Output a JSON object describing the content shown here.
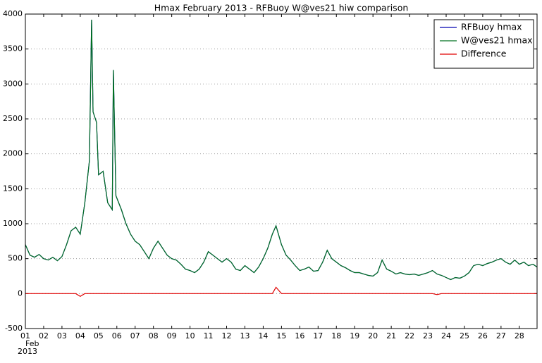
{
  "chart_data": {
    "type": "line",
    "title": "Hmax February 2013 - RFBuoy W@ves21 hiw comparison",
    "x_axis_month": "Feb",
    "x_axis_year": "2013",
    "x": [
      1,
      1.25,
      1.5,
      1.75,
      2,
      2.25,
      2.5,
      2.75,
      3,
      3.25,
      3.5,
      3.75,
      4,
      4.25,
      4.5,
      4.62,
      4.7,
      4.89,
      5,
      5.25,
      5.5,
      5.75,
      5.81,
      5.95,
      6.25,
      6.5,
      6.75,
      7,
      7.25,
      7.5,
      7.75,
      8,
      8.25,
      8.5,
      8.75,
      9,
      9.25,
      9.5,
      9.75,
      10,
      10.25,
      10.5,
      10.75,
      11,
      11.25,
      11.5,
      11.75,
      12,
      12.25,
      12.5,
      12.75,
      13,
      13.25,
      13.5,
      13.75,
      14,
      14.25,
      14.5,
      14.7,
      15,
      15.25,
      15.5,
      15.75,
      16,
      16.25,
      16.5,
      16.75,
      17,
      17.25,
      17.5,
      17.75,
      18,
      18.25,
      18.5,
      18.75,
      19,
      19.25,
      19.5,
      19.75,
      20,
      20.25,
      20.5,
      20.75,
      21,
      21.25,
      21.5,
      21.75,
      22,
      22.25,
      22.5,
      22.75,
      23,
      23.25,
      23.5,
      23.75,
      24,
      24.25,
      24.5,
      24.75,
      25,
      25.25,
      25.5,
      25.75,
      26,
      26.25,
      26.5,
      26.75,
      27,
      27.25,
      27.5,
      27.75,
      28,
      28.25,
      28.5,
      28.75,
      28.97
    ],
    "series": [
      {
        "name": "RFBuoy hmax",
        "color": "#0000b0",
        "values": [
          700,
          550,
          520,
          560,
          500,
          480,
          520,
          470,
          530,
          700,
          900,
          950,
          850,
          1300,
          1900,
          3920,
          2600,
          2450,
          1700,
          1750,
          1300,
          1200,
          3200,
          1400,
          1200,
          1000,
          850,
          750,
          700,
          600,
          500,
          650,
          750,
          650,
          550,
          500,
          480,
          420,
          350,
          330,
          300,
          350,
          450,
          600,
          550,
          500,
          450,
          500,
          450,
          350,
          330,
          400,
          350,
          300,
          380,
          500,
          650,
          850,
          970,
          700,
          550,
          480,
          400,
          330,
          350,
          380,
          320,
          330,
          450,
          620,
          500,
          450,
          400,
          370,
          330,
          300,
          300,
          280,
          260,
          250,
          300,
          480,
          350,
          320,
          280,
          300,
          280,
          270,
          280,
          260,
          280,
          300,
          330,
          280,
          260,
          230,
          200,
          230,
          220,
          250,
          300,
          400,
          420,
          400,
          430,
          450,
          480,
          500,
          450,
          420,
          480,
          420,
          450,
          400,
          420,
          380
        ]
      },
      {
        "name": "W@ves21 hmax",
        "color": "#007020",
        "values": [
          700,
          550,
          520,
          560,
          500,
          480,
          520,
          470,
          530,
          700,
          900,
          950,
          850,
          1300,
          1900,
          3920,
          2600,
          2450,
          1700,
          1750,
          1300,
          1200,
          3200,
          1400,
          1200,
          1000,
          850,
          750,
          700,
          600,
          500,
          650,
          750,
          650,
          550,
          500,
          480,
          420,
          350,
          330,
          300,
          350,
          450,
          600,
          550,
          500,
          450,
          500,
          450,
          350,
          330,
          400,
          350,
          300,
          380,
          500,
          650,
          850,
          970,
          700,
          550,
          480,
          400,
          330,
          350,
          380,
          320,
          330,
          450,
          620,
          500,
          450,
          400,
          370,
          330,
          300,
          300,
          280,
          260,
          250,
          300,
          480,
          350,
          320,
          280,
          300,
          280,
          270,
          280,
          260,
          280,
          300,
          330,
          280,
          260,
          230,
          200,
          230,
          220,
          250,
          300,
          400,
          420,
          400,
          430,
          450,
          480,
          500,
          450,
          420,
          480,
          420,
          450,
          400,
          420,
          380
        ]
      },
      {
        "name": "Difference",
        "color": "#e00000",
        "values": [
          0,
          0,
          0,
          0,
          0,
          0,
          0,
          0,
          0,
          0,
          0,
          0,
          -40,
          0,
          0,
          0,
          0,
          0,
          0,
          0,
          0,
          0,
          0,
          0,
          0,
          0,
          0,
          0,
          0,
          0,
          0,
          0,
          0,
          0,
          0,
          0,
          0,
          0,
          0,
          0,
          0,
          0,
          0,
          0,
          0,
          0,
          0,
          0,
          0,
          0,
          0,
          0,
          0,
          0,
          0,
          0,
          0,
          0,
          90,
          0,
          0,
          0,
          0,
          0,
          0,
          0,
          0,
          0,
          0,
          0,
          0,
          0,
          0,
          0,
          0,
          0,
          0,
          0,
          0,
          0,
          0,
          0,
          0,
          0,
          0,
          0,
          0,
          0,
          0,
          0,
          0,
          0,
          0,
          -15,
          0,
          0,
          0,
          0,
          0,
          0,
          0,
          0,
          0,
          0,
          0,
          0,
          0,
          0,
          0,
          0,
          0,
          0,
          0,
          0,
          0,
          0
        ]
      }
    ],
    "xlim": [
      1,
      28.97
    ],
    "xticks": [
      {
        "value": 1,
        "label": "01"
      },
      {
        "value": 2,
        "label": "02"
      },
      {
        "value": 3,
        "label": "03"
      },
      {
        "value": 4,
        "label": "04"
      },
      {
        "value": 5,
        "label": "05"
      },
      {
        "value": 6,
        "label": "06"
      },
      {
        "value": 7,
        "label": "07"
      },
      {
        "value": 8,
        "label": "08"
      },
      {
        "value": 9,
        "label": "09"
      },
      10,
      11,
      12,
      13,
      14,
      15,
      16,
      17,
      18,
      19,
      20,
      21,
      22,
      23,
      24,
      25,
      26,
      27,
      28
    ],
    "ylim": [
      -500,
      4000
    ],
    "yticks": [
      -500,
      0,
      500,
      1000,
      1500,
      2000,
      2500,
      3000,
      3500,
      4000
    ],
    "grid": true,
    "legend": "upper right"
  }
}
